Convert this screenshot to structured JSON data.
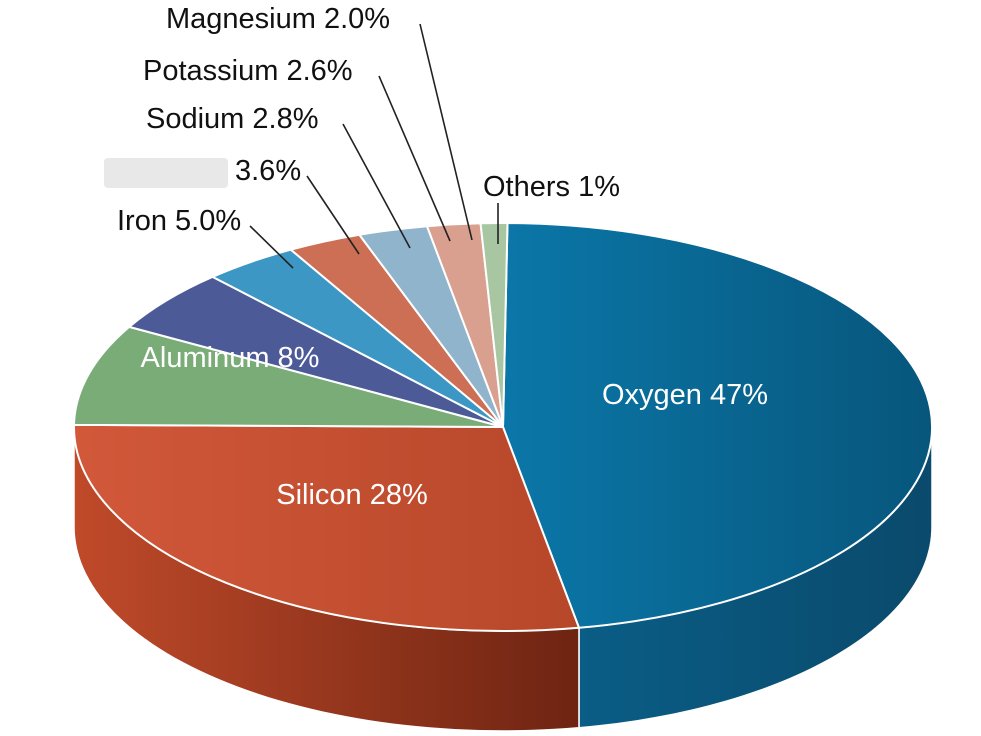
{
  "chart_data": {
    "type": "pie",
    "style": "3d",
    "categories": [
      "Oxygen",
      "Silicon",
      "Aluminum",
      "Iron",
      "",
      "Sodium",
      "Potassium",
      "Magnesium",
      "Others"
    ],
    "values": [
      47,
      28,
      8,
      5.0,
      3.6,
      2.8,
      2.6,
      2.0,
      1
    ],
    "labels": [
      "Oxygen 47%",
      "Silicon 28%",
      "Aluminum 8%",
      "Iron 5.0%",
      "3.6%",
      "Sodium 2.8%",
      "Potassium 2.6%",
      "Magnesium 2.0%",
      "Others 1%"
    ],
    "colors": [
      "#0a6e9e",
      "#c9512f",
      "#7aac78",
      "#4d5a98",
      "#3c97c4",
      "#cc6f55",
      "#8fb4cb",
      "#d9a08f",
      "#a9c6a3"
    ]
  }
}
